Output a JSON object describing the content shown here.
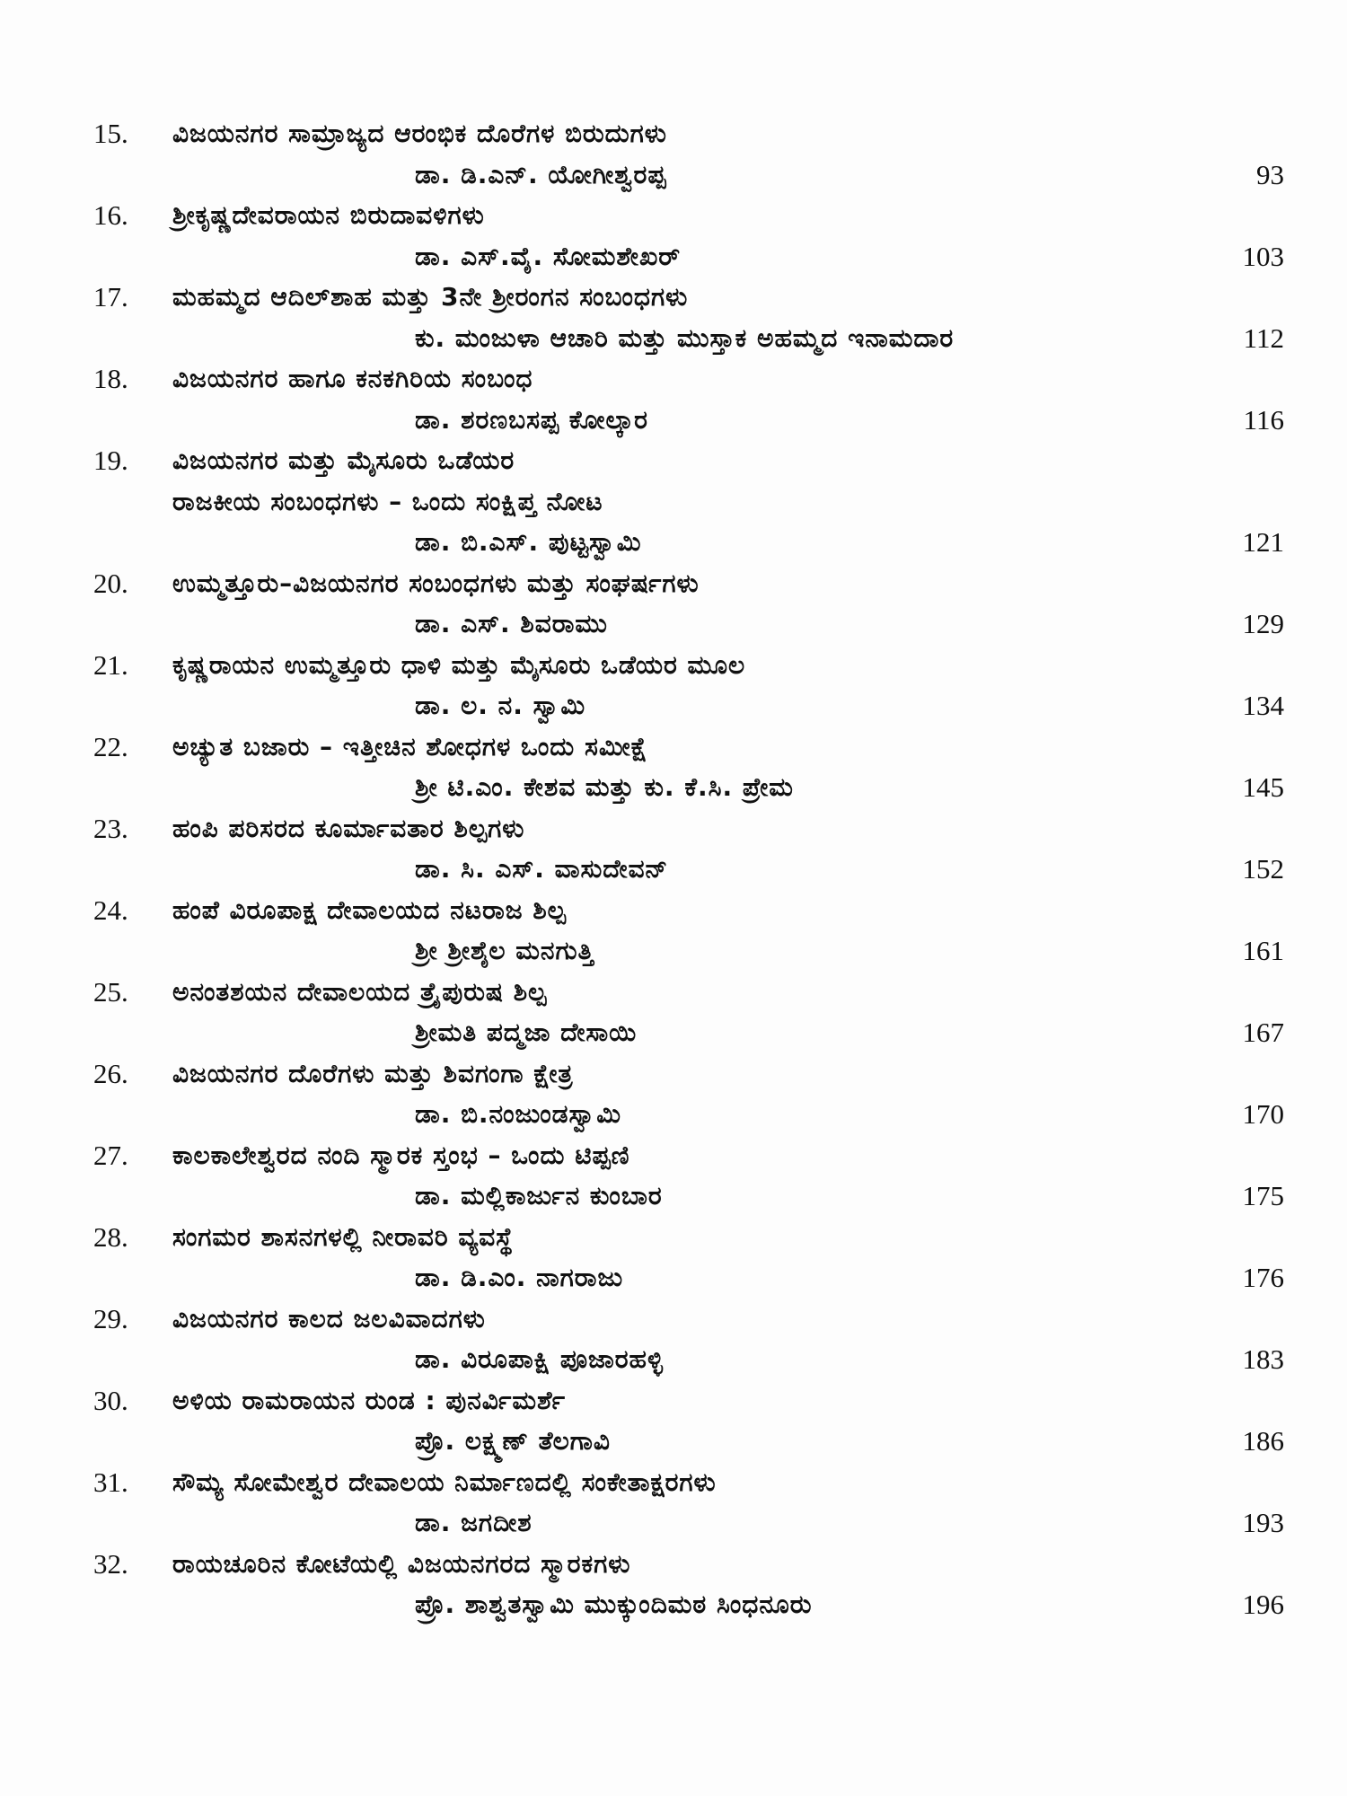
{
  "entries": [
    {
      "no": "15.",
      "title": [
        "ವಿಜಯನಗರ ಸಾಮ್ರಾಜ್ಯದ ಆರಂಭಿಕ ದೊರೆಗಳ ಬಿರುದುಗಳು"
      ],
      "author": "ಡಾ. ಡಿ.ಎನ್. ಯೋಗೀಶ್ವರಪ್ಪ",
      "page": "93"
    },
    {
      "no": "16.",
      "title": [
        "ಶ್ರೀಕೃಷ್ಣದೇವರಾಯನ ಬಿರುದಾವಳಿಗಳು"
      ],
      "author": "ಡಾ. ಎಸ್.ವೈ. ಸೋಮಶೇಖರ್",
      "page": "103"
    },
    {
      "no": "17.",
      "title": [
        "ಮಹಮ್ಮದ ಆದಿಲ್‌ಶಾಹ ಮತ್ತು 3ನೇ ಶ್ರೀರಂಗನ ಸಂಬಂಧಗಳು"
      ],
      "author": "ಕು. ಮಂಜುಳಾ ಆಚಾರಿ ಮತ್ತು ಮುಸ್ತಾಕ ಅಹಮ್ಮದ ಇನಾಮದಾರ",
      "page": "112"
    },
    {
      "no": "18.",
      "title": [
        "ವಿಜಯನಗರ ಹಾಗೂ ಕನಕಗಿರಿಯ ಸಂಬಂಧ"
      ],
      "author": "ಡಾ. ಶರಣಬಸಪ್ಪ ಕೋಲ್ಕಾರ",
      "page": "116"
    },
    {
      "no": "19.",
      "title": [
        "ವಿಜಯನಗರ ಮತ್ತು ಮೈಸೂರು ಒಡೆಯರ",
        "ರಾಜಕೀಯ ಸಂಬಂಧಗಳು – ಒಂದು ಸಂಕ್ಷಿಪ್ತ ನೋಟ"
      ],
      "author": "ಡಾ. ಬಿ.ಎಸ್. ಪುಟ್ಟಸ್ವಾಮಿ",
      "page": "121"
    },
    {
      "no": "20.",
      "title": [
        "ಉಮ್ಮತ್ತೂರು–ವಿಜಯನಗರ ಸಂಬಂಧಗಳು ಮತ್ತು ಸಂಘರ್ಷಗಳು"
      ],
      "author": "ಡಾ. ಎಸ್. ಶಿವರಾಮು",
      "page": "129"
    },
    {
      "no": "21.",
      "title": [
        "ಕೃಷ್ಣರಾಯನ ಉಮ್ಮತ್ತೂರು ಧಾಳಿ ಮತ್ತು ಮೈಸೂರು ಒಡೆಯರ ಮೂಲ"
      ],
      "author": "ಡಾ. ಲ. ನ. ಸ್ವಾಮಿ",
      "page": "134"
    },
    {
      "no": "22.",
      "title": [
        "ಅಚ್ಯುತ ಬಜಾರು – ಇತ್ತೀಚಿನ ಶೋಧಗಳ ಒಂದು ಸಮೀಕ್ಷೆ"
      ],
      "author": "ಶ್ರೀ ಟಿ.ಎಂ. ಕೇಶವ ಮತ್ತು ಕು. ಕೆ.ಸಿ. ಪ್ರೇಮ",
      "page": "145"
    },
    {
      "no": "23.",
      "title": [
        "ಹಂಪಿ ಪರಿಸರದ ಕೂರ್ಮಾವತಾರ ಶಿಲ್ಪಗಳು"
      ],
      "author": "ಡಾ. ಸಿ. ಎಸ್. ವಾಸುದೇವನ್",
      "page": "152"
    },
    {
      "no": "24.",
      "title": [
        "ಹಂಪೆ ವಿರೂಪಾಕ್ಷ ದೇವಾಲಯದ ನಟರಾಜ ಶಿಲ್ಪ"
      ],
      "author": "ಶ್ರೀ ಶ್ರೀಶೈಲ ಮನಗುತ್ತಿ",
      "page": "161"
    },
    {
      "no": "25.",
      "title": [
        "ಅನಂತಶಯನ ದೇವಾಲಯದ ತ್ರೈಪುರುಷ ಶಿಲ್ಪ"
      ],
      "author": "ಶ್ರೀಮತಿ ಪದ್ಮಜಾ ದೇಸಾಯಿ",
      "page": "167"
    },
    {
      "no": "26.",
      "title": [
        "ವಿಜಯನಗರ ದೊರೆಗಳು ಮತ್ತು ಶಿವಗಂಗಾ ಕ್ಷೇತ್ರ"
      ],
      "author": "ಡಾ. ಬಿ.ನಂಜುಂಡಸ್ವಾಮಿ",
      "page": "170"
    },
    {
      "no": "27.",
      "title": [
        "ಕಾಲಕಾಲೇಶ್ವರದ ನಂದಿ ಸ್ಮಾರಕ ಸ್ತಂಭ – ಒಂದು ಟಿಪ್ಪಣಿ"
      ],
      "author": "ಡಾ. ಮಲ್ಲಿಕಾರ್ಜುನ ಕುಂಬಾರ",
      "page": "175"
    },
    {
      "no": "28.",
      "title": [
        "ಸಂಗಮರ ಶಾಸನಗಳಲ್ಲಿ ನೀರಾವರಿ ವ್ಯವಸ್ಥೆ"
      ],
      "author": "ಡಾ. ಡಿ.ಎಂ. ನಾಗರಾಜು",
      "page": "176"
    },
    {
      "no": "29.",
      "title": [
        "ವಿಜಯನಗರ ಕಾಲದ ಜಲವಿವಾದಗಳು"
      ],
      "author": "ಡಾ. ವಿರೂಪಾಕ್ಷಿ ಪೂಜಾರಹಳ್ಳಿ",
      "page": "183"
    },
    {
      "no": "30.",
      "title": [
        "ಅಳಿಯ ರಾಮರಾಯನ ರುಂಡ : ಪುನರ್ವಿಮರ್ಶೆ"
      ],
      "author": "ಪ್ರೊ. ಲಕ್ಷ್ಮಣ್ ತೆಲಗಾವಿ",
      "page": "186"
    },
    {
      "no": "31.",
      "title": [
        "ಸೌಮ್ಯ ಸೋಮೇಶ್ವರ ದೇವಾಲಯ ನಿರ್ಮಾಣದಲ್ಲಿ ಸಂಕೇತಾಕ್ಷರಗಳು"
      ],
      "author": "ಡಾ. ಜಗದೀಶ",
      "page": "193"
    },
    {
      "no": "32.",
      "title": [
        "ರಾಯಚೂರಿನ ಕೋಟೆಯಲ್ಲಿ ವಿಜಯನಗರದ ಸ್ಮಾರಕಗಳು"
      ],
      "author": "ಪ್ರೊ. ಶಾಶ್ವತಸ್ವಾಮಿ ಮುಕ್ಕುಂದಿಮಠ ಸಿಂಧನೂರು",
      "page": "196"
    }
  ]
}
